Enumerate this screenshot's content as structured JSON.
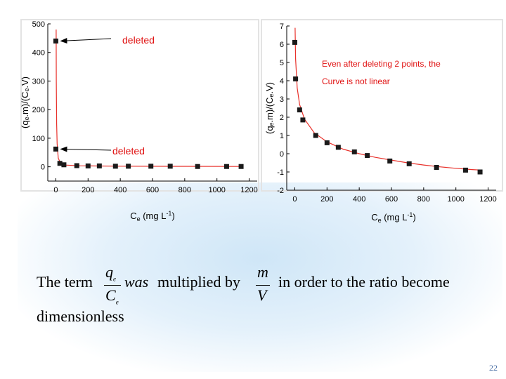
{
  "chart_data": [
    {
      "type": "scatter",
      "xlabel_main": "C",
      "xlabel_sub": "e",
      "xlabel_unit": " (mg L",
      "xlabel_exp": "-1",
      "xlabel_end": ")",
      "ylabel": "(qₑ.m)/(Cₑ.V)",
      "xlim": [
        -50,
        1250
      ],
      "ylim": [
        -50,
        500
      ],
      "xticks": [
        0,
        200,
        400,
        600,
        800,
        1000,
        1200
      ],
      "yticks": [
        0,
        100,
        200,
        300,
        400,
        500
      ],
      "points": [
        {
          "x": 0,
          "y": 440
        },
        {
          "x": 0,
          "y": 62
        },
        {
          "x": 25,
          "y": 12
        },
        {
          "x": 50,
          "y": 7
        },
        {
          "x": 130,
          "y": 4
        },
        {
          "x": 200,
          "y": 3
        },
        {
          "x": 270,
          "y": 3
        },
        {
          "x": 370,
          "y": 2
        },
        {
          "x": 450,
          "y": 2
        },
        {
          "x": 590,
          "y": 2
        },
        {
          "x": 710,
          "y": 2
        },
        {
          "x": 880,
          "y": 1
        },
        {
          "x": 1060,
          "y": 1
        },
        {
          "x": 1150,
          "y": 1
        }
      ],
      "fit_curve": [
        {
          "x": 2,
          "y": 480
        },
        {
          "x": 3,
          "y": 300
        },
        {
          "x": 5,
          "y": 150
        },
        {
          "x": 8,
          "y": 80
        },
        {
          "x": 15,
          "y": 30
        },
        {
          "x": 30,
          "y": 12
        },
        {
          "x": 60,
          "y": 6
        },
        {
          "x": 150,
          "y": 3.5
        },
        {
          "x": 400,
          "y": 2
        },
        {
          "x": 800,
          "y": 1.5
        },
        {
          "x": 1160,
          "y": 1
        }
      ],
      "annotations": [
        {
          "text": "deleted",
          "from": {
            "x": 470,
            "y": 440
          },
          "to": {
            "x": 0,
            "y": 440
          }
        },
        {
          "text": "deleted",
          "from": {
            "x": 370,
            "y": 75
          },
          "to": {
            "x": 0,
            "y": 62
          }
        }
      ]
    },
    {
      "type": "scatter",
      "xlabel_main": "C",
      "xlabel_sub": "e",
      "xlabel_unit": " (mg L",
      "xlabel_exp": "-1",
      "xlabel_end": ")",
      "ylabel": "(qₑ.m)/(Cₑ.V)",
      "xlim": [
        -50,
        1250
      ],
      "ylim": [
        -2,
        7
      ],
      "xticks": [
        0,
        200,
        400,
        600,
        800,
        1000,
        1200
      ],
      "yticks": [
        -2,
        -1,
        0,
        1,
        2,
        3,
        4,
        5,
        6,
        7
      ],
      "points": [
        {
          "x": 0,
          "y": 6.1
        },
        {
          "x": 5,
          "y": 4.1
        },
        {
          "x": 30,
          "y": 2.4
        },
        {
          "x": 50,
          "y": 1.85
        },
        {
          "x": 130,
          "y": 1.0
        },
        {
          "x": 200,
          "y": 0.6
        },
        {
          "x": 270,
          "y": 0.35
        },
        {
          "x": 370,
          "y": 0.1
        },
        {
          "x": 450,
          "y": -0.1
        },
        {
          "x": 590,
          "y": -0.4
        },
        {
          "x": 710,
          "y": -0.55
        },
        {
          "x": 880,
          "y": -0.75
        },
        {
          "x": 1060,
          "y": -0.9
        },
        {
          "x": 1150,
          "y": -1.0
        }
      ],
      "fit_curve": [
        {
          "x": 2,
          "y": 6.9
        },
        {
          "x": 5,
          "y": 5.2
        },
        {
          "x": 15,
          "y": 3.6
        },
        {
          "x": 30,
          "y": 2.7
        },
        {
          "x": 60,
          "y": 1.9
        },
        {
          "x": 120,
          "y": 1.15
        },
        {
          "x": 200,
          "y": 0.65
        },
        {
          "x": 300,
          "y": 0.25
        },
        {
          "x": 400,
          "y": 0.0
        },
        {
          "x": 500,
          "y": -0.2
        },
        {
          "x": 600,
          "y": -0.35
        },
        {
          "x": 700,
          "y": -0.5
        },
        {
          "x": 800,
          "y": -0.62
        },
        {
          "x": 900,
          "y": -0.72
        },
        {
          "x": 1000,
          "y": -0.8
        },
        {
          "x": 1100,
          "y": -0.87
        },
        {
          "x": 1160,
          "y": -0.9
        }
      ],
      "annotations": [
        {
          "text": "Even after deleting 2 points, the"
        },
        {
          "text": "Curve is not linear"
        }
      ]
    }
  ],
  "equation": {
    "the_term": "The term",
    "frac1_num": "q",
    "frac1_num_sub": "e",
    "frac1_den": "C",
    "frac1_den_sub": "e",
    "was": "was",
    "multiplied_by": "multiplied by",
    "frac2_num": "m",
    "frac2_den": "V",
    "in_order": "in order to the ratio become",
    "dimensionless": "dimensionless"
  },
  "slide_number": "22",
  "colors": {
    "marker": "#1a1a1a",
    "fit_line": "#e8312b",
    "annotation_text": "#e01010",
    "axis": "#000000",
    "slide_number": "#4a6fa5"
  }
}
